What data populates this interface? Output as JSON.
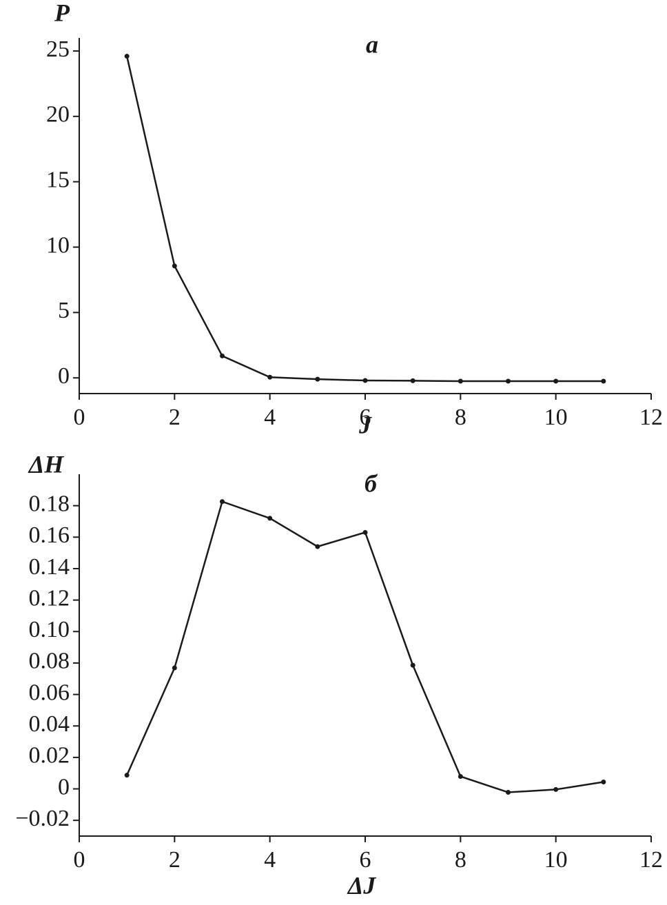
{
  "chart_data": [
    {
      "type": "line",
      "title": "а",
      "xlabel": "J",
      "ylabel": "P",
      "color": "#1a1a1a",
      "x": [
        1,
        2,
        3,
        4,
        5,
        6,
        7,
        8,
        9,
        10,
        11
      ],
      "values": [
        24.6,
        8.56,
        1.68,
        0.05,
        -0.1,
        -0.2,
        -0.22,
        -0.25,
        -0.25,
        -0.25,
        -0.25
      ],
      "xlim": [
        0,
        12
      ],
      "ylim": [
        -1.2,
        26
      ],
      "xticks": [
        0,
        2,
        4,
        6,
        8,
        10,
        12
      ],
      "yticks": [
        0,
        5,
        10,
        15,
        20,
        25
      ]
    },
    {
      "type": "line",
      "title": "б",
      "xlabel": "ΔJ",
      "ylabel": "ΔH",
      "color": "#1a1a1a",
      "x": [
        1,
        2,
        3,
        4,
        5,
        6,
        7,
        8,
        9,
        10,
        11
      ],
      "values": [
        0.0087,
        0.0769,
        0.1826,
        0.172,
        0.154,
        0.163,
        0.0786,
        0.0079,
        -0.0022,
        -0.0004,
        0.0044
      ],
      "xlim": [
        0,
        12
      ],
      "ylim": [
        -0.03,
        0.2
      ],
      "xticks": [
        0,
        2,
        4,
        6,
        8,
        10,
        12
      ],
      "yticks": [
        {
          "value": -0.02,
          "label": "−0.02"
        },
        0,
        0.02,
        0.04,
        0.06,
        0.08,
        {
          "value": 0.1,
          "label": "0.10"
        },
        0.12,
        0.14,
        0.16,
        0.18
      ]
    }
  ]
}
